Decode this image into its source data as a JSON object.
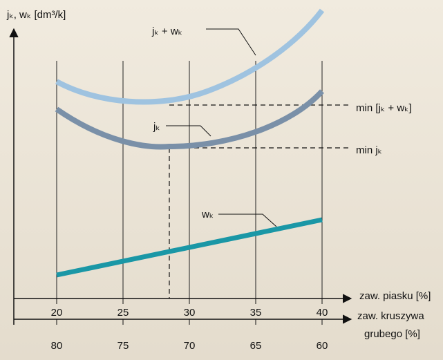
{
  "axis": {
    "y_label": "jₖ, wₖ [dm³/k]",
    "x1_label": "zaw. piasku [%]",
    "x1_ticks": [
      "20",
      "25",
      "30",
      "35",
      "40"
    ],
    "x2_label": [
      "zaw. kruszywa",
      "grubego [%]"
    ],
    "x2_ticks": [
      "80",
      "75",
      "70",
      "65",
      "60"
    ]
  },
  "curves": {
    "sum_label": "jₖ + wₖ",
    "j_label": "jₖ",
    "w_label": "wₖ"
  },
  "annotations": {
    "min_sum": "min [jₖ + wₖ]",
    "min_j": "min jₖ"
  }
}
